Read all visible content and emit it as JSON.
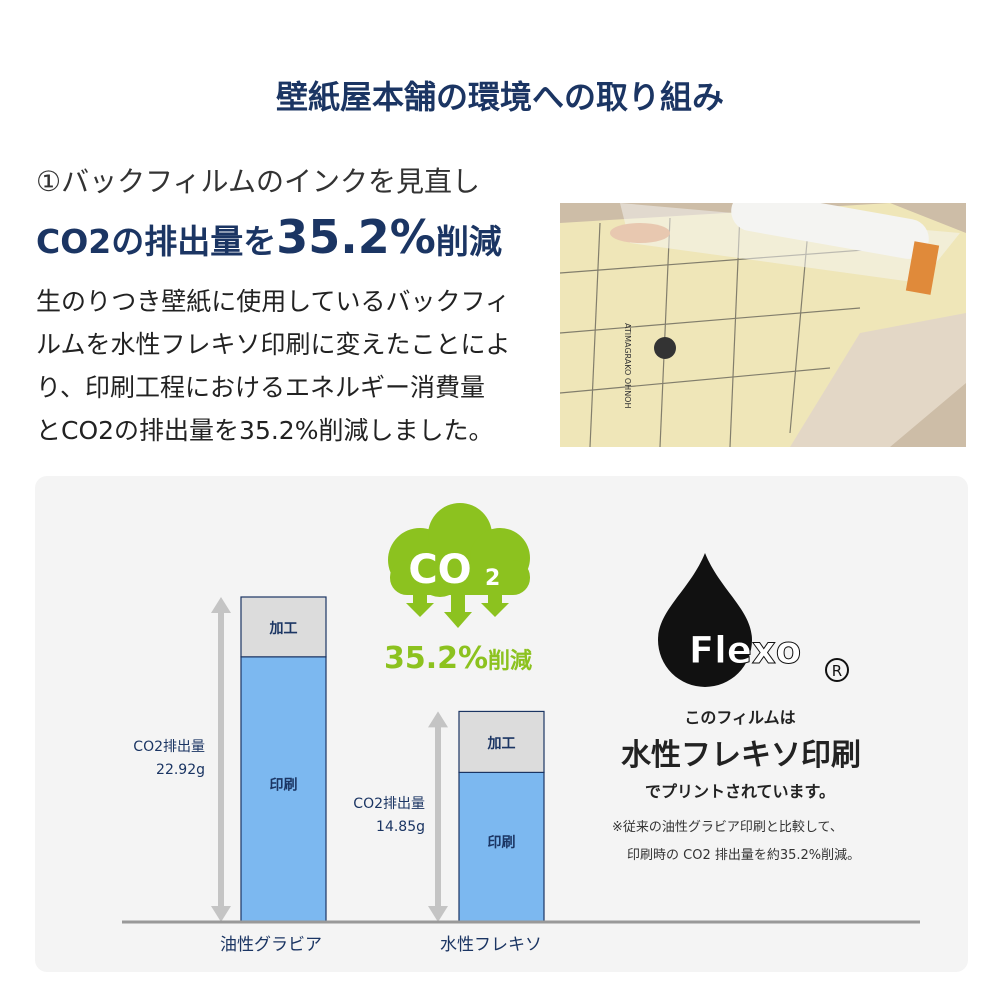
{
  "title": "壁紙屋本舗の環境への取り組み",
  "heading": {
    "line1": "①バックフィルムのインクを見直し",
    "line2_prefix": "CO2の排出量を",
    "line2_value": "35.2%",
    "line2_suffix": "削減"
  },
  "paragraph": [
    "生のりつき壁紙に使用しているバックフィ",
    "ルムを水性フレキソ印刷に変えたことによ",
    "り、印刷工程におけるエネルギー消費量",
    "とCO2の排出量を35.2%削減しました。"
  ],
  "photo": {
    "description_icon": "wallpaper-roll-photo",
    "film_text": "ATIMAGRAKO OHNOH"
  },
  "cloud": {
    "label": "CO",
    "sub": "2",
    "reduction": "35.2%",
    "reduction_suffix": "削減",
    "color": "#8cc21f"
  },
  "flexo": {
    "logo": "Flexo",
    "registered": "®",
    "line1": "このフィルムは",
    "line2": "水性フレキソ印刷",
    "line3": "でプリントされています。",
    "note1": "※従来の油性グラビア印刷と比較して、",
    "note2": "印刷時の CO2 排出量を約35.2%削減。"
  },
  "chart_data": {
    "type": "bar",
    "stacked": true,
    "categories": [
      "油性グラビア",
      "水性フレキソ"
    ],
    "series": [
      {
        "name": "印刷",
        "values": [
          18.7,
          10.55
        ],
        "color": "#7cb8f0"
      },
      {
        "name": "加工",
        "values": [
          4.22,
          4.3
        ],
        "color": "#dcdcdc"
      }
    ],
    "totals": [
      22.92,
      14.85
    ],
    "total_labels": [
      {
        "label": "CO2排出量",
        "value": "22.92g"
      },
      {
        "label": "CO2排出量",
        "value": "14.85g"
      }
    ],
    "ylim": [
      0,
      24
    ],
    "grid": false
  }
}
